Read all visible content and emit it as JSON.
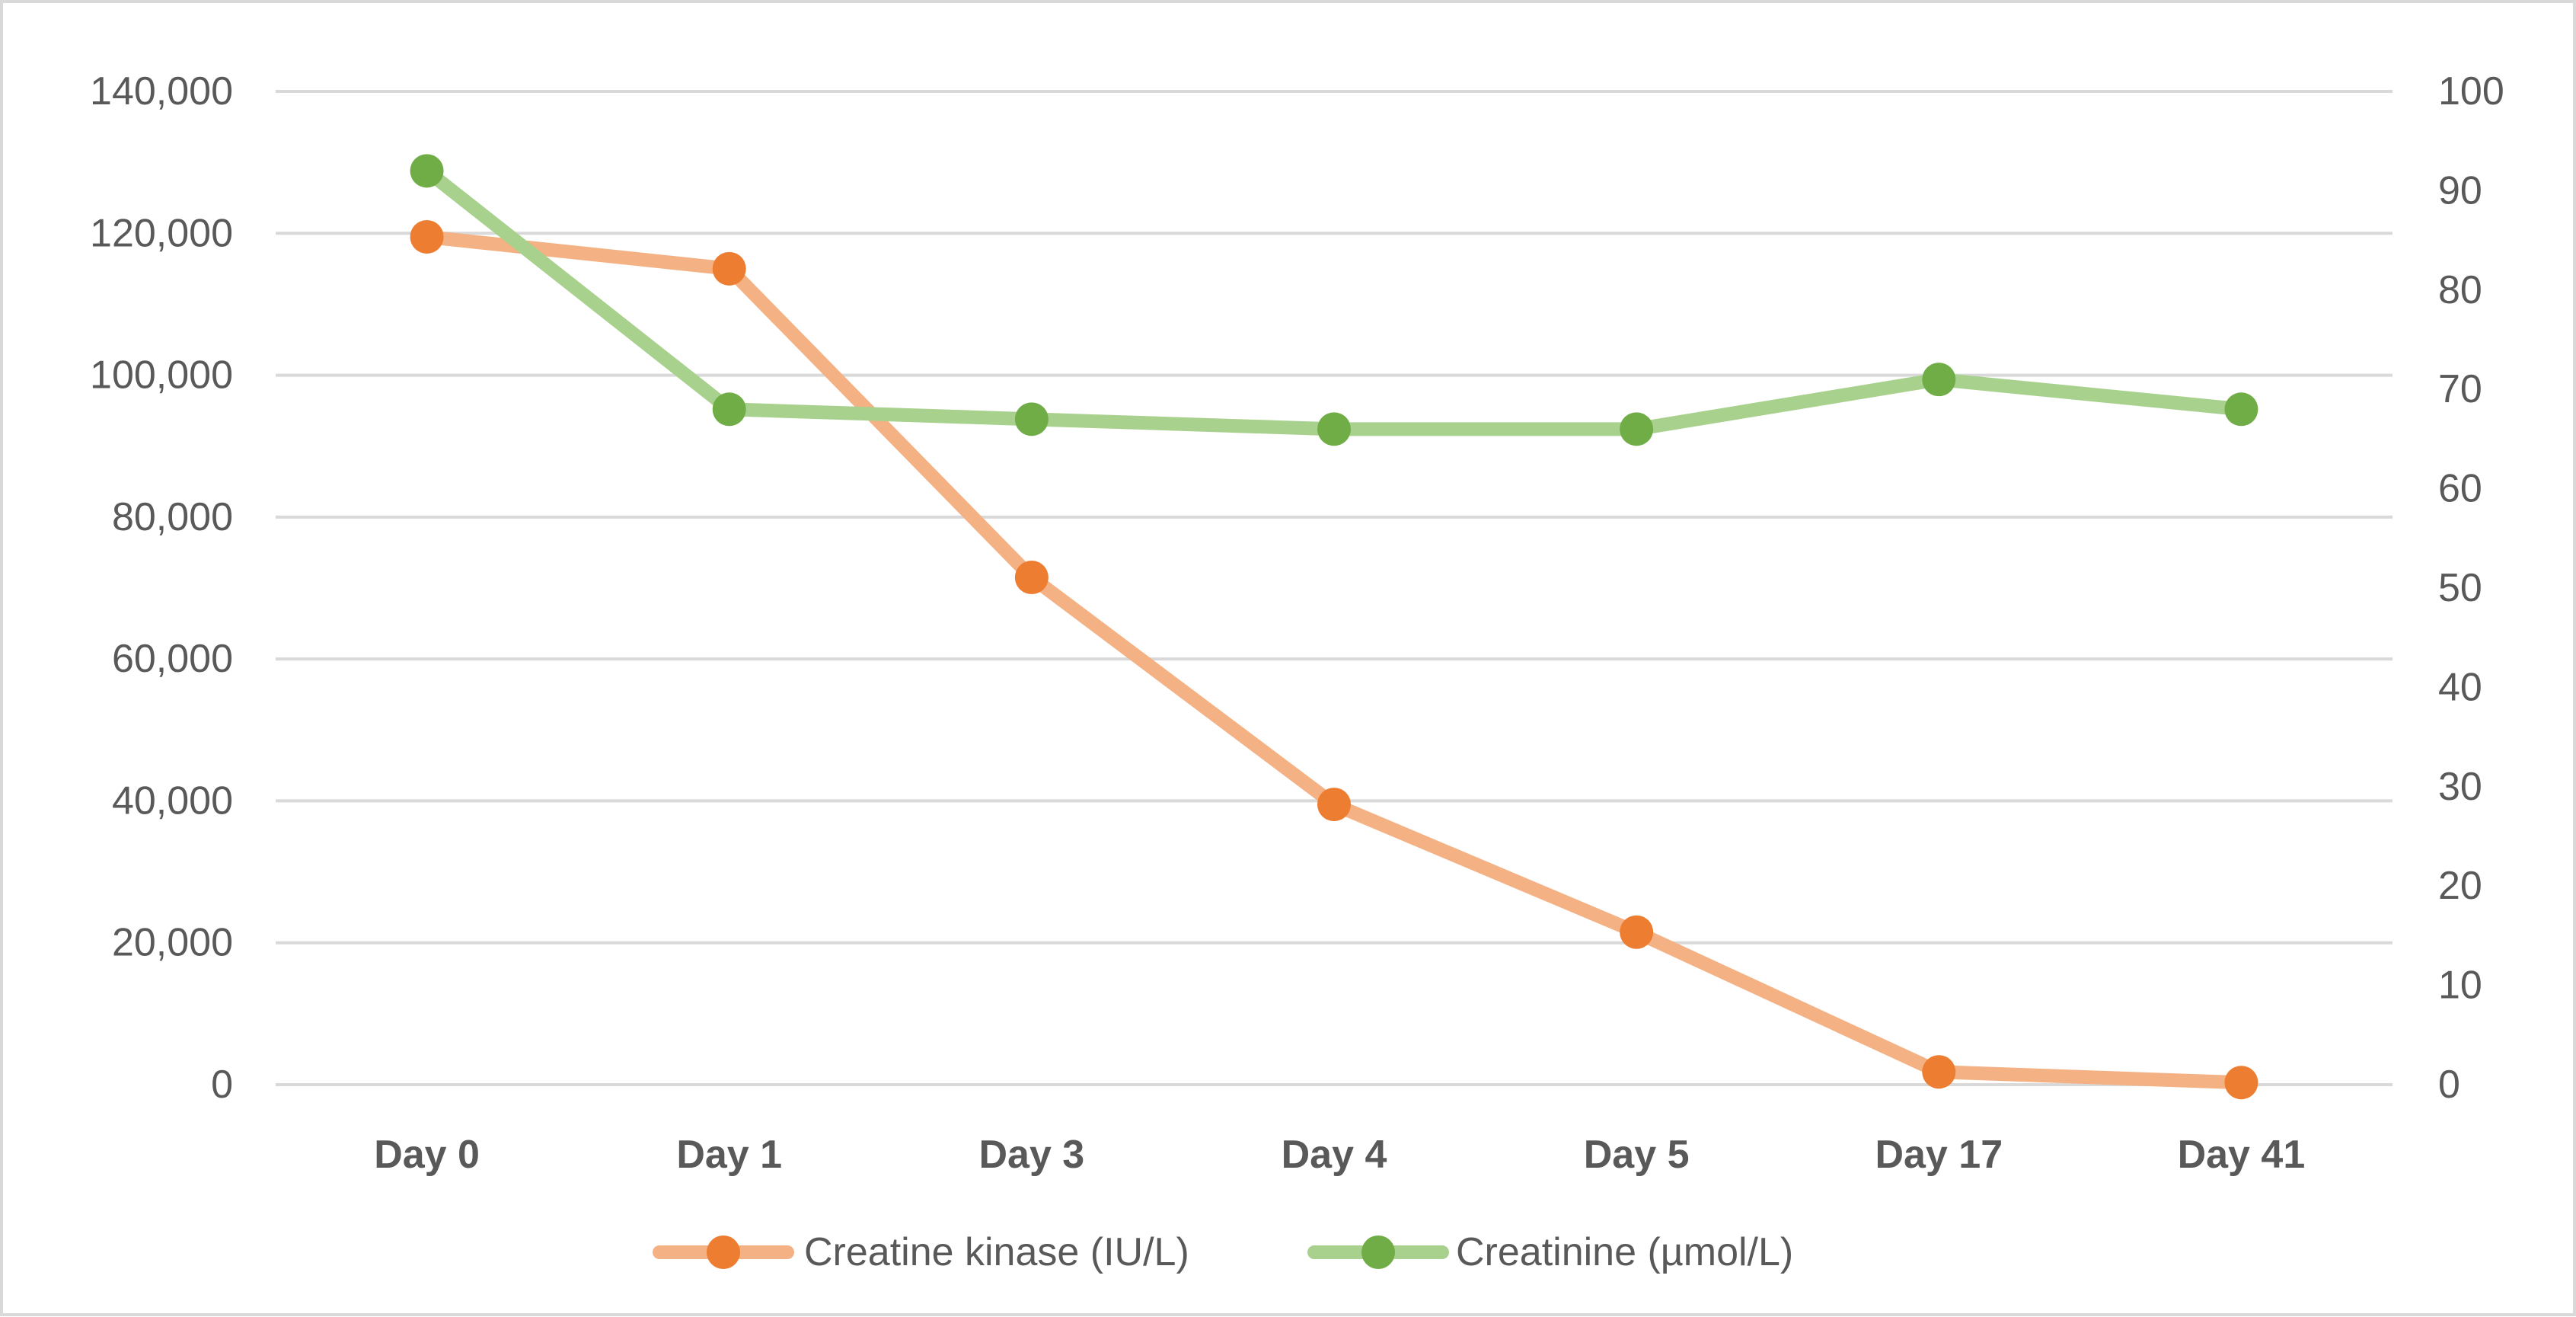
{
  "chart_data": {
    "type": "line",
    "title": "",
    "categories": [
      "Day 0",
      "Day 1",
      "Day 3",
      "Day 4",
      "Day 5",
      "Day 17",
      "Day 41"
    ],
    "series": [
      {
        "name": "Creatine kinase (IU/L)",
        "axis": "left",
        "color": "#ed7d31",
        "line_color": "#f4b183",
        "values": [
          119500,
          115000,
          71500,
          39500,
          21500,
          1800,
          300
        ]
      },
      {
        "name": "Creatinine (µmol/L)",
        "axis": "right",
        "color": "#70ad47",
        "line_color": "#a9d18e",
        "values": [
          92,
          68,
          67,
          66,
          66,
          71,
          68
        ]
      }
    ],
    "y_left": {
      "range": [
        0,
        140000
      ],
      "ticks": [
        0,
        20000,
        40000,
        60000,
        80000,
        100000,
        120000,
        140000
      ],
      "tick_labels": [
        "0",
        "20,000",
        "40,000",
        "60,000",
        "80,000",
        "100,000",
        "120,000",
        "140,000"
      ]
    },
    "y_right": {
      "range": [
        0,
        100
      ],
      "ticks": [
        0,
        10,
        20,
        30,
        40,
        50,
        60,
        70,
        80,
        90,
        100
      ],
      "tick_labels": [
        "0",
        "10",
        "20",
        "30",
        "40",
        "50",
        "60",
        "70",
        "80",
        "90",
        "100"
      ]
    },
    "grid": true,
    "legend_position": "bottom-center",
    "gridline_color": "#d9d9d9"
  }
}
